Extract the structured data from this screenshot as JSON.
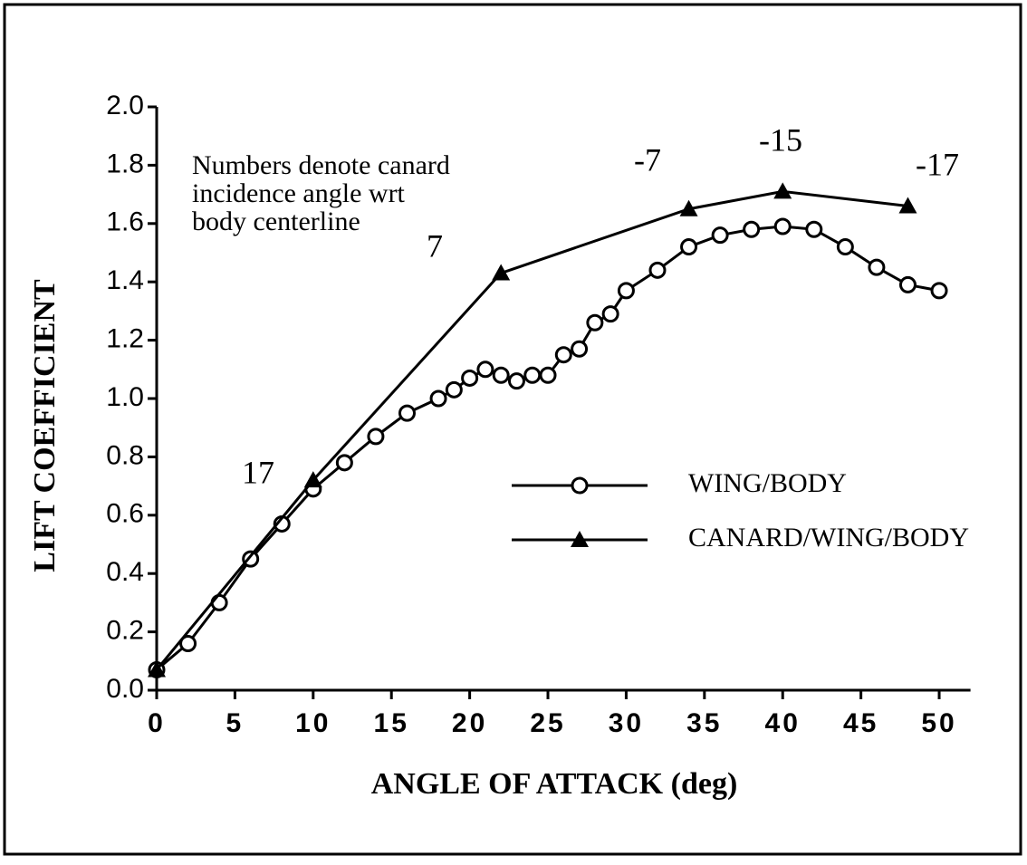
{
  "chart_data": {
    "type": "line",
    "xlabel": "ANGLE OF ATTACK (deg)",
    "ylabel": "LIFT COEFFICIENT",
    "note": [
      "Numbers denote canard",
      "incidence angle wrt",
      "body centerline"
    ],
    "annotations": [
      "17",
      "7",
      "-7",
      "-15",
      "-17"
    ],
    "xlim": [
      0,
      52
    ],
    "ylim": [
      0,
      2.0
    ],
    "xticks": [
      0,
      5,
      10,
      15,
      20,
      25,
      30,
      35,
      40,
      45,
      50
    ],
    "yticks": [
      {
        "value": 0,
        "label": "0.0"
      },
      0.2,
      0.4,
      0.6,
      0.8,
      {
        "value": 1,
        "label": "1.0"
      },
      1.2,
      1.4,
      1.6,
      1.8,
      {
        "value": 2,
        "label": "2.0"
      }
    ],
    "legend": "center right",
    "series": [
      {
        "name": "WING/BODY",
        "color": "#000000",
        "marker": "open-circle",
        "x": [
          0,
          2,
          4,
          6,
          8,
          10,
          12,
          14,
          16,
          18,
          19,
          20,
          21,
          22,
          23,
          24,
          25,
          26,
          27,
          28,
          29,
          30,
          32,
          34,
          36,
          38,
          40,
          42,
          44,
          46,
          48,
          50
        ],
        "values": [
          0.07,
          0.16,
          0.3,
          0.45,
          0.57,
          0.69,
          0.78,
          0.87,
          0.95,
          1.0,
          1.03,
          1.07,
          1.1,
          1.08,
          1.06,
          1.08,
          1.08,
          1.15,
          1.17,
          1.26,
          1.29,
          1.37,
          1.44,
          1.52,
          1.56,
          1.58,
          1.59,
          1.58,
          1.52,
          1.45,
          1.39,
          1.37
        ]
      },
      {
        "name": "CANARD/WING/BODY",
        "color": "#000000",
        "marker": "filled-triangle",
        "x": [
          0,
          10,
          22,
          34,
          40,
          48
        ],
        "values": [
          0.07,
          0.72,
          1.43,
          1.65,
          1.71,
          1.66
        ]
      }
    ]
  }
}
